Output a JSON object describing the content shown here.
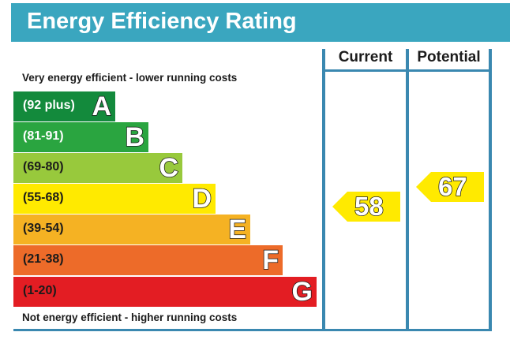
{
  "header": {
    "title": "Energy Efficiency Rating"
  },
  "columns": {
    "current": "Current",
    "potential": "Potential"
  },
  "captions": {
    "top": "Very energy efficient - lower running costs",
    "bottom": "Not energy efficient - higher running costs"
  },
  "bands": [
    {
      "range": "(92 plus)",
      "letter": "A",
      "color": "#138a3c",
      "text_color": "#ffffff"
    },
    {
      "range": "(81-91)",
      "letter": "B",
      "color": "#2aa540",
      "text_color": "#ffffff"
    },
    {
      "range": "(69-80)",
      "letter": "C",
      "color": "#98c93c",
      "text_color": "#1b1b1b"
    },
    {
      "range": "(55-68)",
      "letter": "D",
      "color": "#ffea00",
      "text_color": "#1b1b1b"
    },
    {
      "range": "(39-54)",
      "letter": "E",
      "color": "#f5b223",
      "text_color": "#1b1b1b"
    },
    {
      "range": "(21-38)",
      "letter": "F",
      "color": "#ed6b29",
      "text_color": "#1b1b1b"
    },
    {
      "range": "(1-20)",
      "letter": "G",
      "color": "#e31d23",
      "text_color": "#1b1b1b"
    }
  ],
  "ratings": {
    "current": {
      "value": "58",
      "band": "D",
      "color": "#ffea00"
    },
    "potential": {
      "value": "67",
      "band": "D",
      "color": "#ffea00"
    }
  },
  "colors": {
    "accent": "#3aa6bf",
    "grid": "#3a88b0"
  }
}
